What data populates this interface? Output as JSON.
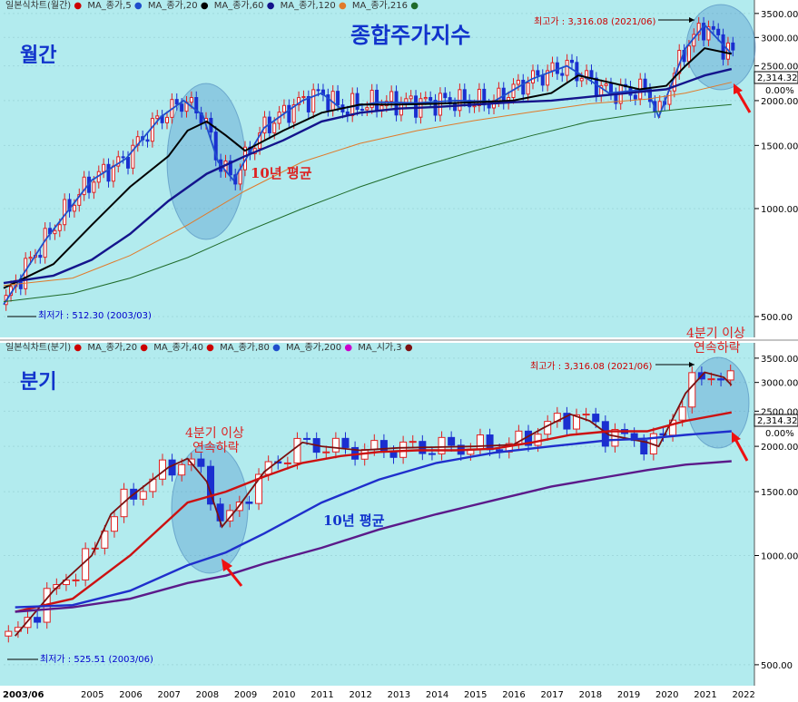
{
  "chart_data": [
    {
      "type": "line",
      "panel": "monthly",
      "title": "종합주가지수",
      "legend": [
        "일본식차트(월간)",
        "MA_종가,5",
        "MA_종가,20",
        "MA_종가,60",
        "MA_종가,120",
        "MA_종가,216"
      ],
      "legend_colors": [
        "#cc0000",
        "#1f4ecc",
        "#000000",
        "#14148c",
        "#e07a2a",
        "#1f6b2a"
      ],
      "period_label": "월간",
      "yscale": "log",
      "ylim": [
        480,
        3600
      ],
      "yticks": [
        "3500.00",
        "3000.00",
        "2500.00",
        "2000.00",
        "1500.00",
        "1000.00",
        "500.00"
      ],
      "current_value": "2,314.32",
      "change": "0.00%",
      "max_label": "최고가 : 3,316.08 (2021/06)",
      "min_label": "최저가 : 512.30 (2003/03)",
      "annotation": "10년 평균",
      "series": [
        {
          "name": "MA_종가,5",
          "x": [
            2003.2,
            2004.3,
            2005.5,
            2006.4,
            2007.3,
            2007.9,
            2008.4,
            2008.8,
            2009.2,
            2010.0,
            2011.0,
            2011.5,
            2012.0,
            2013.0,
            2014.0,
            2015.0,
            2016.0,
            2017.0,
            2017.9,
            2018.5,
            2019.0,
            2020.0,
            2020.3,
            2021.0,
            2021.5,
            2022.0,
            2022.2
          ],
          "values": [
            540,
            820,
            1200,
            1380,
            1800,
            2000,
            1820,
            1350,
            1200,
            1680,
            2000,
            2100,
            1900,
            1980,
            1970,
            2000,
            1990,
            2300,
            2500,
            2280,
            2100,
            2150,
            1800,
            2800,
            3250,
            2850,
            2700
          ]
        },
        {
          "name": "MA_종가,20",
          "x": [
            2003.2,
            2004.5,
            2005.5,
            2006.5,
            2007.5,
            2008.0,
            2008.5,
            2009.0,
            2009.5,
            2010.5,
            2011.5,
            2012.5,
            2013.5,
            2014.5,
            2015.5,
            2016.5,
            2017.5,
            2018.2,
            2019.0,
            2019.8,
            2020.5,
            2021.0,
            2021.5,
            2022.2
          ],
          "values": [
            600,
            700,
            900,
            1150,
            1400,
            1650,
            1750,
            1600,
            1450,
            1650,
            1850,
            1950,
            1950,
            1960,
            1980,
            2000,
            2100,
            2350,
            2250,
            2150,
            2200,
            2500,
            2800,
            2700
          ]
        },
        {
          "name": "MA_종가,60",
          "x": [
            2003.2,
            2004.5,
            2005.5,
            2006.5,
            2007.5,
            2008.5,
            2009.5,
            2010.5,
            2011.5,
            2012.5,
            2013.5,
            2014.5,
            2015.5,
            2016.5,
            2017.5,
            2018.5,
            2019.5,
            2020.5,
            2021.5,
            2022.2
          ],
          "values": [
            620,
            650,
            720,
            850,
            1050,
            1250,
            1400,
            1550,
            1750,
            1850,
            1900,
            1920,
            1950,
            1980,
            2000,
            2050,
            2100,
            2150,
            2350,
            2450
          ]
        },
        {
          "name": "MA_종가,120",
          "x": [
            2003.2,
            2005.0,
            2006.5,
            2008.0,
            2009.5,
            2011.0,
            2012.5,
            2014.0,
            2015.5,
            2017.0,
            2018.5,
            2020.0,
            2021.0,
            2022.2
          ],
          "values": [
            610,
            640,
            740,
            900,
            1120,
            1350,
            1520,
            1650,
            1760,
            1860,
            1960,
            2020,
            2100,
            2250
          ]
        },
        {
          "name": "MA_종가,216",
          "x": [
            2003.2,
            2005.0,
            2006.5,
            2008.0,
            2009.5,
            2011.0,
            2012.5,
            2014.0,
            2015.5,
            2017.0,
            2018.5,
            2020.0,
            2021.0,
            2022.2
          ],
          "values": [
            550,
            580,
            640,
            730,
            860,
            1000,
            1150,
            1300,
            1450,
            1600,
            1750,
            1850,
            1900,
            1950
          ]
        }
      ]
    },
    {
      "type": "line",
      "panel": "quarterly",
      "legend": [
        "일본식차트(분기)",
        "MA_종가,20",
        "MA_종가,40",
        "MA_종가,80",
        "MA_종가,200",
        "MA_시가,3"
      ],
      "legend_colors": [
        "#cc0000",
        "#cc0000",
        "#cc0000",
        "#1f4ecc",
        "#6a1b9a",
        "#7b1010"
      ],
      "period_label": "분기",
      "yscale": "log",
      "ylim": [
        480,
        3600
      ],
      "yticks": [
        "3500.00",
        "3000.00",
        "2500.00",
        "2000.00",
        "1500.00",
        "1000.00",
        "500.00"
      ],
      "current_value": "2,314.32",
      "change": "0.00%",
      "max_label": "최고가 : 3,316.08 (2021/06)",
      "min_label": "최저가 : 525.51 (2003/06)",
      "annotation": "10년 평균",
      "annotation_left": "4분기 이상\n연속하락",
      "annotation_right": "4분기 이상\n연속하락",
      "xticks": [
        "2003/06",
        "2005",
        "2006",
        "2007",
        "2008",
        "2009",
        "2010",
        "2011",
        "2012",
        "2013",
        "2014",
        "2015",
        "2016",
        "2017",
        "2018",
        "2019",
        "2020",
        "2021",
        "2022"
      ],
      "series": [
        {
          "name": "MA_시가,3",
          "x": [
            2003.5,
            2004.5,
            2005.5,
            2006.0,
            2006.5,
            2007.5,
            2008.0,
            2008.5,
            2008.9,
            2009.3,
            2010.0,
            2011.0,
            2011.5,
            2012.5,
            2013.5,
            2014.5,
            2015.5,
            2016.5,
            2017.3,
            2018.0,
            2018.5,
            2019.0,
            2020.0,
            2020.3,
            2021.0,
            2021.5,
            2022.0,
            2022.2
          ],
          "values": [
            600,
            800,
            1000,
            1300,
            1450,
            1750,
            1850,
            1600,
            1200,
            1350,
            1700,
            2050,
            2000,
            1950,
            1980,
            1990,
            2000,
            2020,
            2250,
            2450,
            2350,
            2150,
            2050,
            2000,
            2800,
            3200,
            3100,
            2950
          ]
        },
        {
          "name": "MA_종가,20",
          "x": [
            2003.5,
            2005.0,
            2006.5,
            2008.0,
            2009.0,
            2010.0,
            2011.0,
            2012.0,
            2013.0,
            2014.0,
            2015.0,
            2016.0,
            2017.0,
            2018.0,
            2019.0,
            2020.0,
            2021.0,
            2022.2
          ],
          "values": [
            700,
            760,
            1000,
            1400,
            1500,
            1650,
            1800,
            1880,
            1930,
            1950,
            1950,
            1970,
            2050,
            2150,
            2200,
            2200,
            2350,
            2480
          ]
        },
        {
          "name": "MA_종가,40",
          "x": [
            2003.5,
            2005.0,
            2006.5,
            2008.0,
            2009.0,
            2010.0,
            2011.5,
            2013.0,
            2014.5,
            2016.0,
            2017.5,
            2019.0,
            2020.0,
            2021.0,
            2022.2
          ],
          "values": [
            720,
            730,
            800,
            940,
            1020,
            1150,
            1400,
            1620,
            1800,
            1920,
            2000,
            2080,
            2100,
            2150,
            2200
          ]
        },
        {
          "name": "MA_종가,200",
          "x": [
            2003.5,
            2005.0,
            2006.5,
            2008.0,
            2009.0,
            2010.0,
            2011.5,
            2013.0,
            2014.5,
            2016.0,
            2017.5,
            2019.0,
            2020.0,
            2021.0,
            2022.2
          ],
          "values": [
            700,
            720,
            760,
            840,
            880,
            950,
            1050,
            1180,
            1300,
            1420,
            1550,
            1650,
            1720,
            1780,
            1820
          ]
        }
      ]
    }
  ]
}
